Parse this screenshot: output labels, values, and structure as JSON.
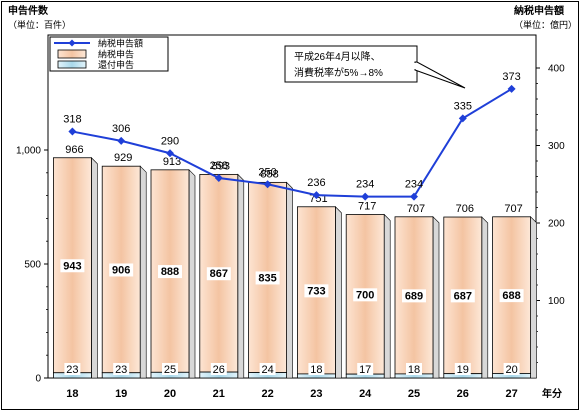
{
  "chart_data": {
    "type": "bar",
    "title": "",
    "left_axis_title": "申告件数",
    "left_axis_unit": "（単位：百件）",
    "right_axis_title": "納税申告額",
    "right_axis_unit": "（単位：億円）",
    "x_unit": "年分",
    "categories": [
      "18",
      "19",
      "20",
      "21",
      "22",
      "23",
      "24",
      "25",
      "26",
      "27"
    ],
    "left_ticks": [
      "0",
      "500",
      "1,000"
    ],
    "right_ticks": [
      "100",
      "200",
      "300",
      "400"
    ],
    "left_ylim": [
      0,
      1000
    ],
    "right_ylim": [
      0,
      400
    ],
    "series": [
      {
        "name": "納税申告額",
        "kind": "line",
        "axis": "right",
        "color": "#1f3fd8",
        "values": [
          318,
          306,
          290,
          258,
          250,
          236,
          234,
          234,
          335,
          373
        ]
      },
      {
        "name": "納税申告",
        "kind": "bar",
        "axis": "left",
        "color": "#f5c9a8",
        "values": [
          943,
          906,
          888,
          867,
          835,
          733,
          700,
          689,
          687,
          688
        ]
      },
      {
        "name": "還付申告",
        "kind": "bar",
        "axis": "left",
        "color": "#bfe3f0",
        "values": [
          23,
          23,
          25,
          26,
          24,
          18,
          17,
          18,
          19,
          20
        ]
      }
    ],
    "totals": [
      966,
      929,
      913,
      893,
      858,
      751,
      717,
      707,
      706,
      707
    ],
    "legend_position": "top-left",
    "annotation": [
      "平成26年4月以降、",
      "消費税率が5%→8%"
    ]
  }
}
